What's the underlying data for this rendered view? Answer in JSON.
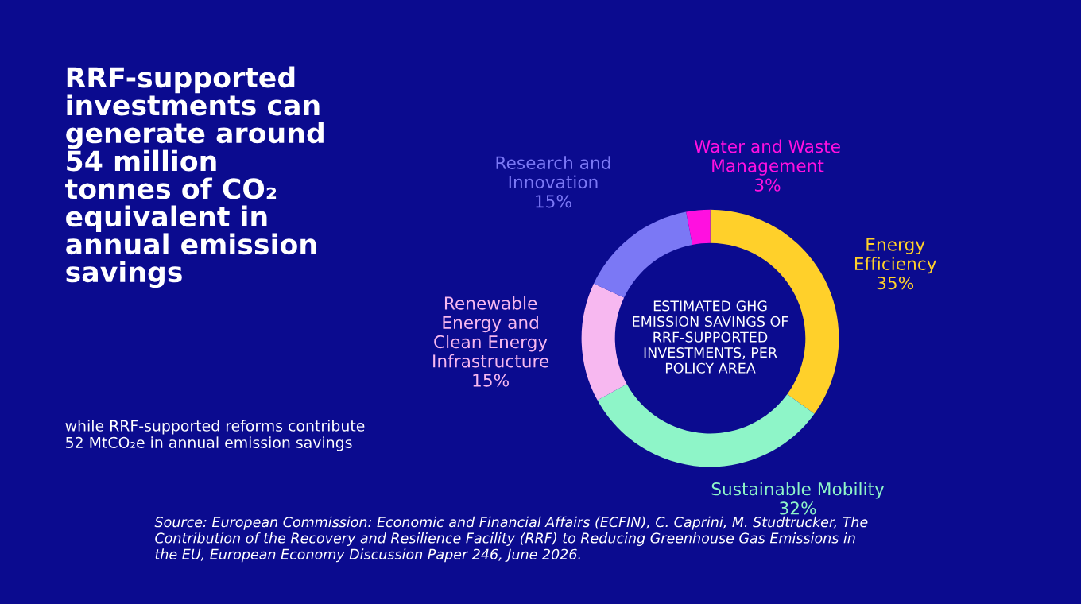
{
  "chart_data": {
    "type": "donut",
    "title": "RRF-supported\ninvestments can\ngenerate around\n54 million\ntonnes of CO₂\nequivalent in\nannual emission\nsavings",
    "subtitle": "while RRF-supported reforms contribute\n52 MtCO₂e in annual emission savings",
    "categories": [
      "Energy\nEfficiency",
      "Sustainable Mobility",
      "Renewable\nEnergy and\nClean Energy\nInfrastructure",
      "Research and\nInnovation",
      "Water and Waste\nManagement"
    ],
    "values": [
      35,
      32,
      15,
      15,
      3
    ],
    "value_labels": [
      "35%",
      "32%",
      "15%",
      "15%",
      "3%"
    ],
    "colors": [
      "#ffd02a",
      "#8ef5c8",
      "#f7b8f0",
      "#7b78f5",
      "#ff10e0"
    ],
    "annotations": [
      "ESTIMATED GHG\nEMISSION SAVINGS OF\nRRF-SUPPORTED\nINVESTMENTS, PER\nPOLICY AREA",
      "Source: European Commission: Economic and Financial Affairs (ECFIN), C. Caprini, M. Studtrucker, The\nContribution of the Recovery and Resilience Facility (RRF) to Reducing Greenhouse Gas Emissions in\nthe EU, European Economy Discussion Paper 246, June 2026."
    ],
    "legend": false
  }
}
